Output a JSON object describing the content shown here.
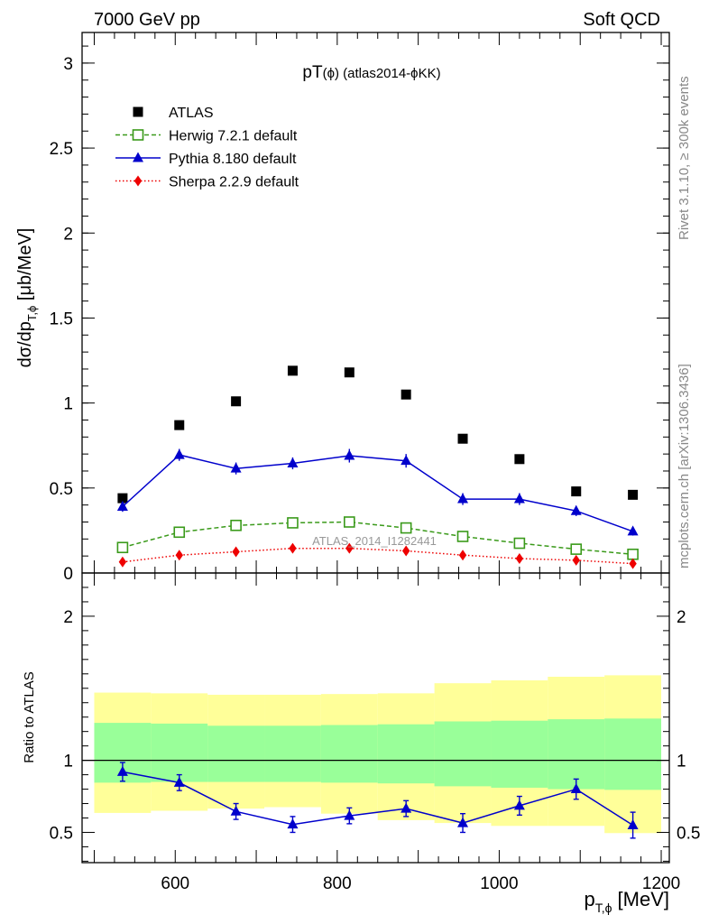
{
  "header": {
    "left": "7000 GeV pp",
    "right": "Soft QCD"
  },
  "side_labels": {
    "rivet": "Rivet 3.1.10, ≥ 300k events",
    "mcplots": "mcplots.cern.ch [arXiv:1306.3436]"
  },
  "colors": {
    "atlas": "#000000",
    "herwig": "#3a9a1a",
    "pythia": "#0000cc",
    "sherpa": "#ee0000",
    "band_outer": "#ffff99",
    "band_inner": "#99ff99"
  },
  "chart_data": [
    {
      "type": "line",
      "title_main": "pT",
      "title_sub": "(ϕ) (atlas2014-ϕKK)",
      "watermark": "ATLAS_2014_I1282441",
      "ylabel": "dσ/dp",
      "ylabel_sub": "T,ϕ",
      "ylabel_unit": " [μb/MeV]",
      "xlim": [
        485,
        1210
      ],
      "ylim": [
        0,
        3.18
      ],
      "yticks": [
        0,
        0.5,
        1,
        1.5,
        2,
        2.5,
        3
      ],
      "ytick_labels": [
        "0",
        "0.5",
        "1",
        "1.5",
        "2",
        "2.5",
        "3"
      ],
      "x": [
        535,
        605,
        675,
        745,
        815,
        885,
        955,
        1025,
        1095,
        1165
      ],
      "legend_position": "top-left",
      "series": [
        {
          "name": "ATLAS",
          "marker": "square-filled",
          "values": [
            0.44,
            0.87,
            1.01,
            1.19,
            1.18,
            1.05,
            0.79,
            0.67,
            0.48,
            0.46
          ]
        },
        {
          "name": "Herwig 7.2.1 default",
          "marker": "square-open",
          "line": "dashed",
          "values": [
            0.15,
            0.24,
            0.28,
            0.295,
            0.3,
            0.265,
            0.215,
            0.175,
            0.14,
            0.11
          ]
        },
        {
          "name": "Pythia 8.180 default",
          "marker": "triangle",
          "line": "solid",
          "values": [
            0.39,
            0.695,
            0.615,
            0.645,
            0.69,
            0.66,
            0.435,
            0.435,
            0.365,
            0.245
          ],
          "errors": [
            0.03,
            0.035,
            0.035,
            0.035,
            0.04,
            0.04,
            0.035,
            0.035,
            0.03,
            0.025
          ]
        },
        {
          "name": "Sherpa 2.2.9 default",
          "marker": "diamond",
          "line": "dotted",
          "values": [
            0.065,
            0.105,
            0.125,
            0.145,
            0.145,
            0.13,
            0.105,
            0.085,
            0.075,
            0.055
          ]
        }
      ]
    },
    {
      "type": "line",
      "ylabel": "Ratio to ATLAS",
      "xlabel": "p",
      "xlabel_sub": "T,ϕ",
      "xlabel_unit": " [MeV]",
      "xlim": [
        485,
        1210
      ],
      "ylim": [
        0.29,
        2.3
      ],
      "yticks": [
        0.5,
        1,
        2
      ],
      "ytick_labels": [
        "0.5",
        "1",
        "2"
      ],
      "xticks": [
        600,
        800,
        1000,
        1200
      ],
      "xtick_labels": [
        "600",
        "800",
        "1000",
        "1200"
      ],
      "bin_edges": [
        500,
        570,
        640,
        710,
        780,
        850,
        920,
        990,
        1060,
        1130,
        1200
      ],
      "band_outer_low": [
        0.635,
        0.65,
        0.665,
        0.675,
        0.63,
        0.585,
        0.565,
        0.545,
        0.545,
        0.495
      ],
      "band_outer_high": [
        1.47,
        1.465,
        1.455,
        1.455,
        1.46,
        1.465,
        1.535,
        1.555,
        1.58,
        1.59
      ],
      "band_inner_low": [
        0.845,
        0.85,
        0.85,
        0.85,
        0.845,
        0.84,
        0.82,
        0.81,
        0.8,
        0.795
      ],
      "band_inner_high": [
        1.26,
        1.255,
        1.24,
        1.24,
        1.245,
        1.25,
        1.27,
        1.275,
        1.285,
        1.29
      ],
      "reference_line": 1,
      "x": [
        535,
        605,
        675,
        745,
        815,
        885,
        955,
        1025,
        1095,
        1165
      ],
      "series": [
        {
          "name": "Pythia 8.180 default",
          "marker": "triangle",
          "values": [
            0.92,
            0.845,
            0.645,
            0.555,
            0.615,
            0.665,
            0.565,
            0.685,
            0.8,
            0.55
          ],
          "errors": [
            0.065,
            0.055,
            0.055,
            0.055,
            0.055,
            0.055,
            0.065,
            0.065,
            0.07,
            0.09
          ]
        }
      ]
    }
  ]
}
